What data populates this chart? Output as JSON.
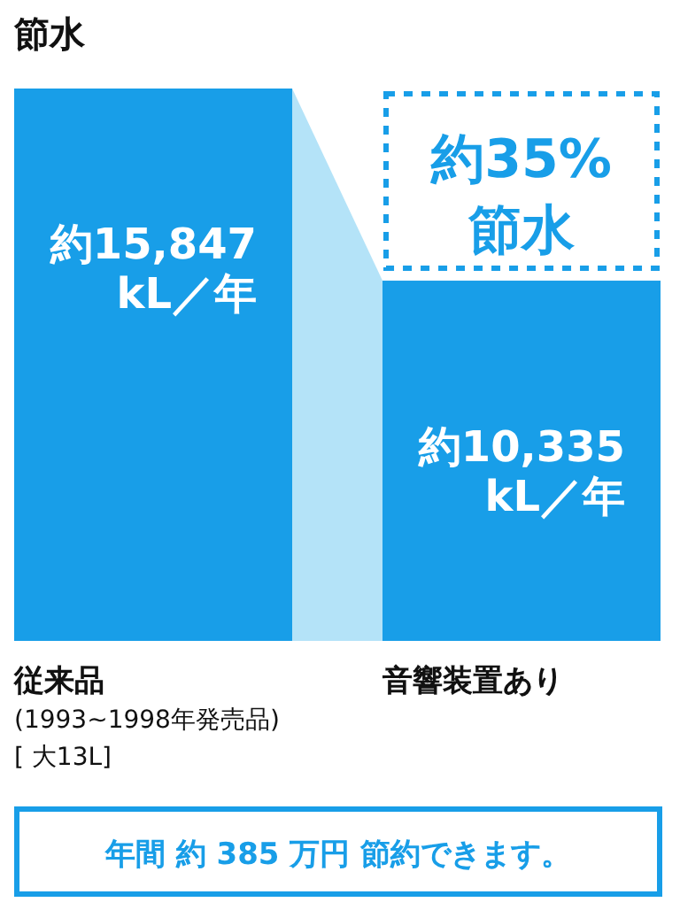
{
  "chart_data": {
    "type": "bar",
    "title": "節水",
    "categories": [
      "従来品\n(1993~1998年発売品)\n[ 大13L]",
      "音響装置あり"
    ],
    "values": [
      15847,
      10335
    ],
    "value_labels": [
      "約15,847\nkL／年",
      "約10,335\nkL／年"
    ],
    "color": "#189ee8",
    "annotations": [
      "約35%\n節水",
      "年間 約 385 万円 節約できます。"
    ]
  }
}
